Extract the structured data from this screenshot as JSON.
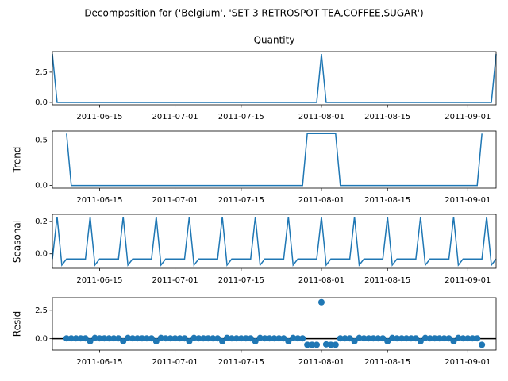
{
  "title": "Decomposition for ('Belgium', 'SET 3 RETROSPOT TEA,COFFEE,SUGAR')",
  "x": [
    "2011-06-05",
    "2011-06-06",
    "2011-06-07",
    "2011-06-08",
    "2011-06-09",
    "2011-06-10",
    "2011-06-11",
    "2011-06-12",
    "2011-06-13",
    "2011-06-14",
    "2011-06-15",
    "2011-06-16",
    "2011-06-17",
    "2011-06-18",
    "2011-06-19",
    "2011-06-20",
    "2011-06-21",
    "2011-06-22",
    "2011-06-23",
    "2011-06-24",
    "2011-06-25",
    "2011-06-26",
    "2011-06-27",
    "2011-06-28",
    "2011-06-29",
    "2011-06-30",
    "2011-07-01",
    "2011-07-02",
    "2011-07-03",
    "2011-07-04",
    "2011-07-05",
    "2011-07-06",
    "2011-07-07",
    "2011-07-08",
    "2011-07-09",
    "2011-07-10",
    "2011-07-11",
    "2011-07-12",
    "2011-07-13",
    "2011-07-14",
    "2011-07-15",
    "2011-07-16",
    "2011-07-17",
    "2011-07-18",
    "2011-07-19",
    "2011-07-20",
    "2011-07-21",
    "2011-07-22",
    "2011-07-23",
    "2011-07-24",
    "2011-07-25",
    "2011-07-26",
    "2011-07-27",
    "2011-07-28",
    "2011-07-29",
    "2011-07-30",
    "2011-07-31",
    "2011-08-01",
    "2011-08-02",
    "2011-08-03",
    "2011-08-04",
    "2011-08-05",
    "2011-08-06",
    "2011-08-07",
    "2011-08-08",
    "2011-08-09",
    "2011-08-10",
    "2011-08-11",
    "2011-08-12",
    "2011-08-13",
    "2011-08-14",
    "2011-08-15",
    "2011-08-16",
    "2011-08-17",
    "2011-08-18",
    "2011-08-19",
    "2011-08-20",
    "2011-08-21",
    "2011-08-22",
    "2011-08-23",
    "2011-08-24",
    "2011-08-25",
    "2011-08-26",
    "2011-08-27",
    "2011-08-28",
    "2011-08-29",
    "2011-08-30",
    "2011-08-31",
    "2011-09-01",
    "2011-09-02",
    "2011-09-03",
    "2011-09-04",
    "2011-09-05",
    "2011-09-06",
    "2011-09-07"
  ],
  "xlim": [
    "2011-06-05",
    "2011-09-07"
  ],
  "xticks": [
    "2011-06-15",
    "2011-07-01",
    "2011-07-15",
    "2011-08-01",
    "2011-08-15",
    "2011-09-01"
  ],
  "chart_data": [
    {
      "type": "line",
      "title": "Quantity",
      "color": "#1f77b4",
      "ylim": [
        -0.2,
        4.2
      ],
      "yticks": [
        {
          "value": 0,
          "label": "0.0"
        },
        2.5
      ],
      "values": [
        4,
        0,
        0,
        0,
        0,
        0,
        0,
        0,
        0,
        0,
        0,
        0,
        0,
        0,
        0,
        0,
        0,
        0,
        0,
        0,
        0,
        0,
        0,
        0,
        0,
        0,
        0,
        0,
        0,
        0,
        0,
        0,
        0,
        0,
        0,
        0,
        0,
        0,
        0,
        0,
        0,
        0,
        0,
        0,
        0,
        0,
        0,
        0,
        0,
        0,
        0,
        0,
        0,
        0,
        0,
        0,
        0,
        4,
        0,
        0,
        0,
        0,
        0,
        0,
        0,
        0,
        0,
        0,
        0,
        0,
        0,
        0,
        0,
        0,
        0,
        0,
        0,
        0,
        0,
        0,
        0,
        0,
        0,
        0,
        0,
        0,
        0,
        0,
        0,
        0,
        0,
        0,
        0,
        0,
        4
      ]
    },
    {
      "type": "line",
      "ylabel": "Trend",
      "color": "#1f77b4",
      "ylim": [
        -0.03,
        0.6
      ],
      "yticks": [
        {
          "value": 0,
          "label": "0.0"
        },
        0.5
      ],
      "values": [
        null,
        null,
        null,
        0.571,
        0,
        0,
        0,
        0,
        0,
        0,
        0,
        0,
        0,
        0,
        0,
        0,
        0,
        0,
        0,
        0,
        0,
        0,
        0,
        0,
        0,
        0,
        0,
        0,
        0,
        0,
        0,
        0,
        0,
        0,
        0,
        0,
        0,
        0,
        0,
        0,
        0,
        0,
        0,
        0,
        0,
        0,
        0,
        0,
        0,
        0,
        0,
        0,
        0,
        0,
        0.571,
        0.571,
        0.571,
        0.571,
        0.571,
        0.571,
        0.571,
        0,
        0,
        0,
        0,
        0,
        0,
        0,
        0,
        0,
        0,
        0,
        0,
        0,
        0,
        0,
        0,
        0,
        0,
        0,
        0,
        0,
        0,
        0,
        0,
        0,
        0,
        0,
        0,
        0,
        0,
        0.571,
        null,
        null,
        null
      ]
    },
    {
      "type": "line",
      "ylabel": "Seasonal",
      "color": "#1f77b4",
      "ylim": [
        -0.09,
        0.245
      ],
      "yticks": [
        {
          "value": 0,
          "label": "0.0"
        },
        0.2
      ],
      "values": [
        -0.032,
        0.23,
        -0.07,
        -0.032,
        -0.032,
        -0.032,
        -0.032,
        -0.032,
        0.23,
        -0.07,
        -0.032,
        -0.032,
        -0.032,
        -0.032,
        -0.032,
        0.23,
        -0.07,
        -0.032,
        -0.032,
        -0.032,
        -0.032,
        -0.032,
        0.23,
        -0.07,
        -0.032,
        -0.032,
        -0.032,
        -0.032,
        -0.032,
        0.23,
        -0.07,
        -0.032,
        -0.032,
        -0.032,
        -0.032,
        -0.032,
        0.23,
        -0.07,
        -0.032,
        -0.032,
        -0.032,
        -0.032,
        -0.032,
        0.23,
        -0.07,
        -0.032,
        -0.032,
        -0.032,
        -0.032,
        -0.032,
        0.23,
        -0.07,
        -0.032,
        -0.032,
        -0.032,
        -0.032,
        -0.032,
        0.23,
        -0.07,
        -0.032,
        -0.032,
        -0.032,
        -0.032,
        -0.032,
        0.23,
        -0.07,
        -0.032,
        -0.032,
        -0.032,
        -0.032,
        -0.032,
        0.23,
        -0.07,
        -0.032,
        -0.032,
        -0.032,
        -0.032,
        -0.032,
        0.23,
        -0.07,
        -0.032,
        -0.032,
        -0.032,
        -0.032,
        -0.032,
        0.23,
        -0.07,
        -0.032,
        -0.032,
        -0.032,
        -0.032,
        -0.032,
        0.23,
        -0.07,
        -0.032
      ]
    },
    {
      "type": "scatter",
      "ylabel": "Resid",
      "color": "#1f77b4",
      "ylim": [
        -1.0,
        3.6
      ],
      "yticks": [
        {
          "value": 0,
          "label": "0.0"
        },
        2.5
      ],
      "values": [
        null,
        null,
        null,
        0.032,
        0.032,
        0.032,
        0.032,
        0.032,
        -0.23,
        0.07,
        0.032,
        0.032,
        0.032,
        0.032,
        0.032,
        -0.23,
        0.07,
        0.032,
        0.032,
        0.032,
        0.032,
        0.032,
        -0.23,
        0.07,
        0.032,
        0.032,
        0.032,
        0.032,
        0.032,
        -0.23,
        0.07,
        0.032,
        0.032,
        0.032,
        0.032,
        0.032,
        -0.23,
        0.07,
        0.032,
        0.032,
        0.032,
        0.032,
        0.032,
        -0.23,
        0.07,
        0.032,
        0.032,
        0.032,
        0.032,
        0.032,
        -0.23,
        0.07,
        0.032,
        0.032,
        -0.539,
        -0.539,
        -0.539,
        3.199,
        -0.501,
        -0.539,
        -0.539,
        0.032,
        0.032,
        0.032,
        -0.23,
        0.07,
        0.032,
        0.032,
        0.032,
        0.032,
        0.032,
        -0.23,
        0.07,
        0.032,
        0.032,
        0.032,
        0.032,
        0.032,
        -0.23,
        0.07,
        0.032,
        0.032,
        0.032,
        0.032,
        0.032,
        -0.23,
        0.07,
        0.032,
        0.032,
        0.032,
        0.032,
        -0.539,
        null,
        null,
        null
      ]
    }
  ]
}
